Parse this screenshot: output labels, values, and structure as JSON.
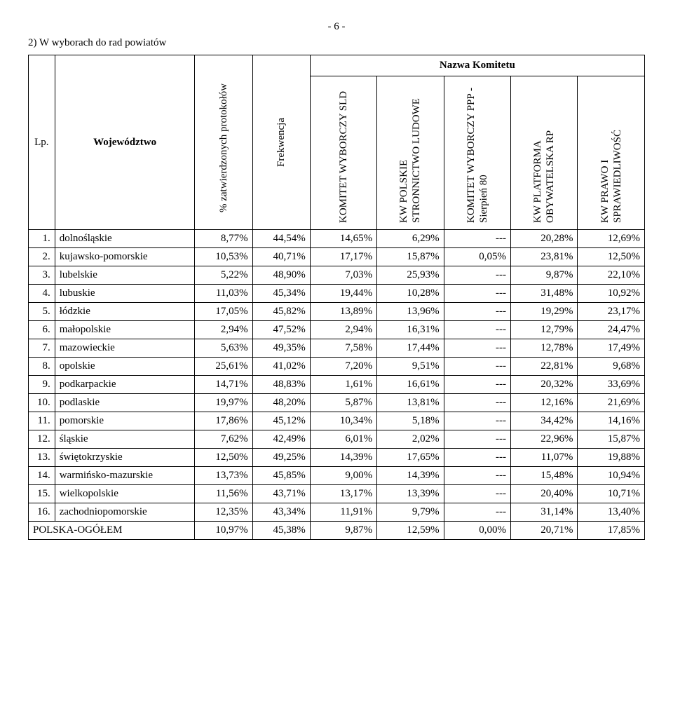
{
  "page_number_text": "- 6 -",
  "title": "2) W wyborach do rad powiatów",
  "headers": {
    "lp": "Lp.",
    "woj": "Województwo",
    "pct": "% zatwierdzonych protokołów",
    "frek": "Frekwencja",
    "nazwa": "Nazwa Komitetu",
    "c1": "KOMITET WYBORCZY SLD",
    "c2": "KW POLSKIE STRONNICTWO LUDOWE",
    "c3": "KOMITET WYBORCZY PPP - Sierpień 80",
    "c4": "KW PLATFORMA OBYWATELSKA RP",
    "c5": "KW PRAWO I SPRAWIEDLIWOŚĆ"
  },
  "rows": [
    {
      "lp": "1.",
      "woj": "dolnośląskie",
      "pct": "8,77%",
      "frek": "44,54%",
      "c1": "14,65%",
      "c2": "6,29%",
      "c3": "---",
      "c4": "20,28%",
      "c5": "12,69%"
    },
    {
      "lp": "2.",
      "woj": "kujawsko-pomorskie",
      "pct": "10,53%",
      "frek": "40,71%",
      "c1": "17,17%",
      "c2": "15,87%",
      "c3": "0,05%",
      "c4": "23,81%",
      "c5": "12,50%"
    },
    {
      "lp": "3.",
      "woj": "lubelskie",
      "pct": "5,22%",
      "frek": "48,90%",
      "c1": "7,03%",
      "c2": "25,93%",
      "c3": "---",
      "c4": "9,87%",
      "c5": "22,10%"
    },
    {
      "lp": "4.",
      "woj": "lubuskie",
      "pct": "11,03%",
      "frek": "45,34%",
      "c1": "19,44%",
      "c2": "10,28%",
      "c3": "---",
      "c4": "31,48%",
      "c5": "10,92%"
    },
    {
      "lp": "5.",
      "woj": "łódzkie",
      "pct": "17,05%",
      "frek": "45,82%",
      "c1": "13,89%",
      "c2": "13,96%",
      "c3": "---",
      "c4": "19,29%",
      "c5": "23,17%"
    },
    {
      "lp": "6.",
      "woj": "małopolskie",
      "pct": "2,94%",
      "frek": "47,52%",
      "c1": "2,94%",
      "c2": "16,31%",
      "c3": "---",
      "c4": "12,79%",
      "c5": "24,47%"
    },
    {
      "lp": "7.",
      "woj": "mazowieckie",
      "pct": "5,63%",
      "frek": "49,35%",
      "c1": "7,58%",
      "c2": "17,44%",
      "c3": "---",
      "c4": "12,78%",
      "c5": "17,49%"
    },
    {
      "lp": "8.",
      "woj": "opolskie",
      "pct": "25,61%",
      "frek": "41,02%",
      "c1": "7,20%",
      "c2": "9,51%",
      "c3": "---",
      "c4": "22,81%",
      "c5": "9,68%"
    },
    {
      "lp": "9.",
      "woj": "podkarpackie",
      "pct": "14,71%",
      "frek": "48,83%",
      "c1": "1,61%",
      "c2": "16,61%",
      "c3": "---",
      "c4": "20,32%",
      "c5": "33,69%"
    },
    {
      "lp": "10.",
      "woj": "podlaskie",
      "pct": "19,97%",
      "frek": "48,20%",
      "c1": "5,87%",
      "c2": "13,81%",
      "c3": "---",
      "c4": "12,16%",
      "c5": "21,69%"
    },
    {
      "lp": "11.",
      "woj": "pomorskie",
      "pct": "17,86%",
      "frek": "45,12%",
      "c1": "10,34%",
      "c2": "5,18%",
      "c3": "---",
      "c4": "34,42%",
      "c5": "14,16%"
    },
    {
      "lp": "12.",
      "woj": "śląskie",
      "pct": "7,62%",
      "frek": "42,49%",
      "c1": "6,01%",
      "c2": "2,02%",
      "c3": "---",
      "c4": "22,96%",
      "c5": "15,87%"
    },
    {
      "lp": "13.",
      "woj": "świętokrzyskie",
      "pct": "12,50%",
      "frek": "49,25%",
      "c1": "14,39%",
      "c2": "17,65%",
      "c3": "---",
      "c4": "11,07%",
      "c5": "19,88%"
    },
    {
      "lp": "14.",
      "woj": "warmińsko-mazurskie",
      "pct": "13,73%",
      "frek": "45,85%",
      "c1": "9,00%",
      "c2": "14,39%",
      "c3": "---",
      "c4": "15,48%",
      "c5": "10,94%"
    },
    {
      "lp": "15.",
      "woj": "wielkopolskie",
      "pct": "11,56%",
      "frek": "43,71%",
      "c1": "13,17%",
      "c2": "13,39%",
      "c3": "---",
      "c4": "20,40%",
      "c5": "10,71%"
    },
    {
      "lp": "16.",
      "woj": "zachodniopomorskie",
      "pct": "12,35%",
      "frek": "43,34%",
      "c1": "11,91%",
      "c2": "9,79%",
      "c3": "---",
      "c4": "31,14%",
      "c5": "13,40%"
    }
  ],
  "total": {
    "lp": "",
    "woj": "POLSKA-OGÓŁEM",
    "pct": "10,97%",
    "frek": "45,38%",
    "c1": "9,87%",
    "c2": "12,59%",
    "c3": "0,00%",
    "c4": "20,71%",
    "c5": "17,85%"
  }
}
